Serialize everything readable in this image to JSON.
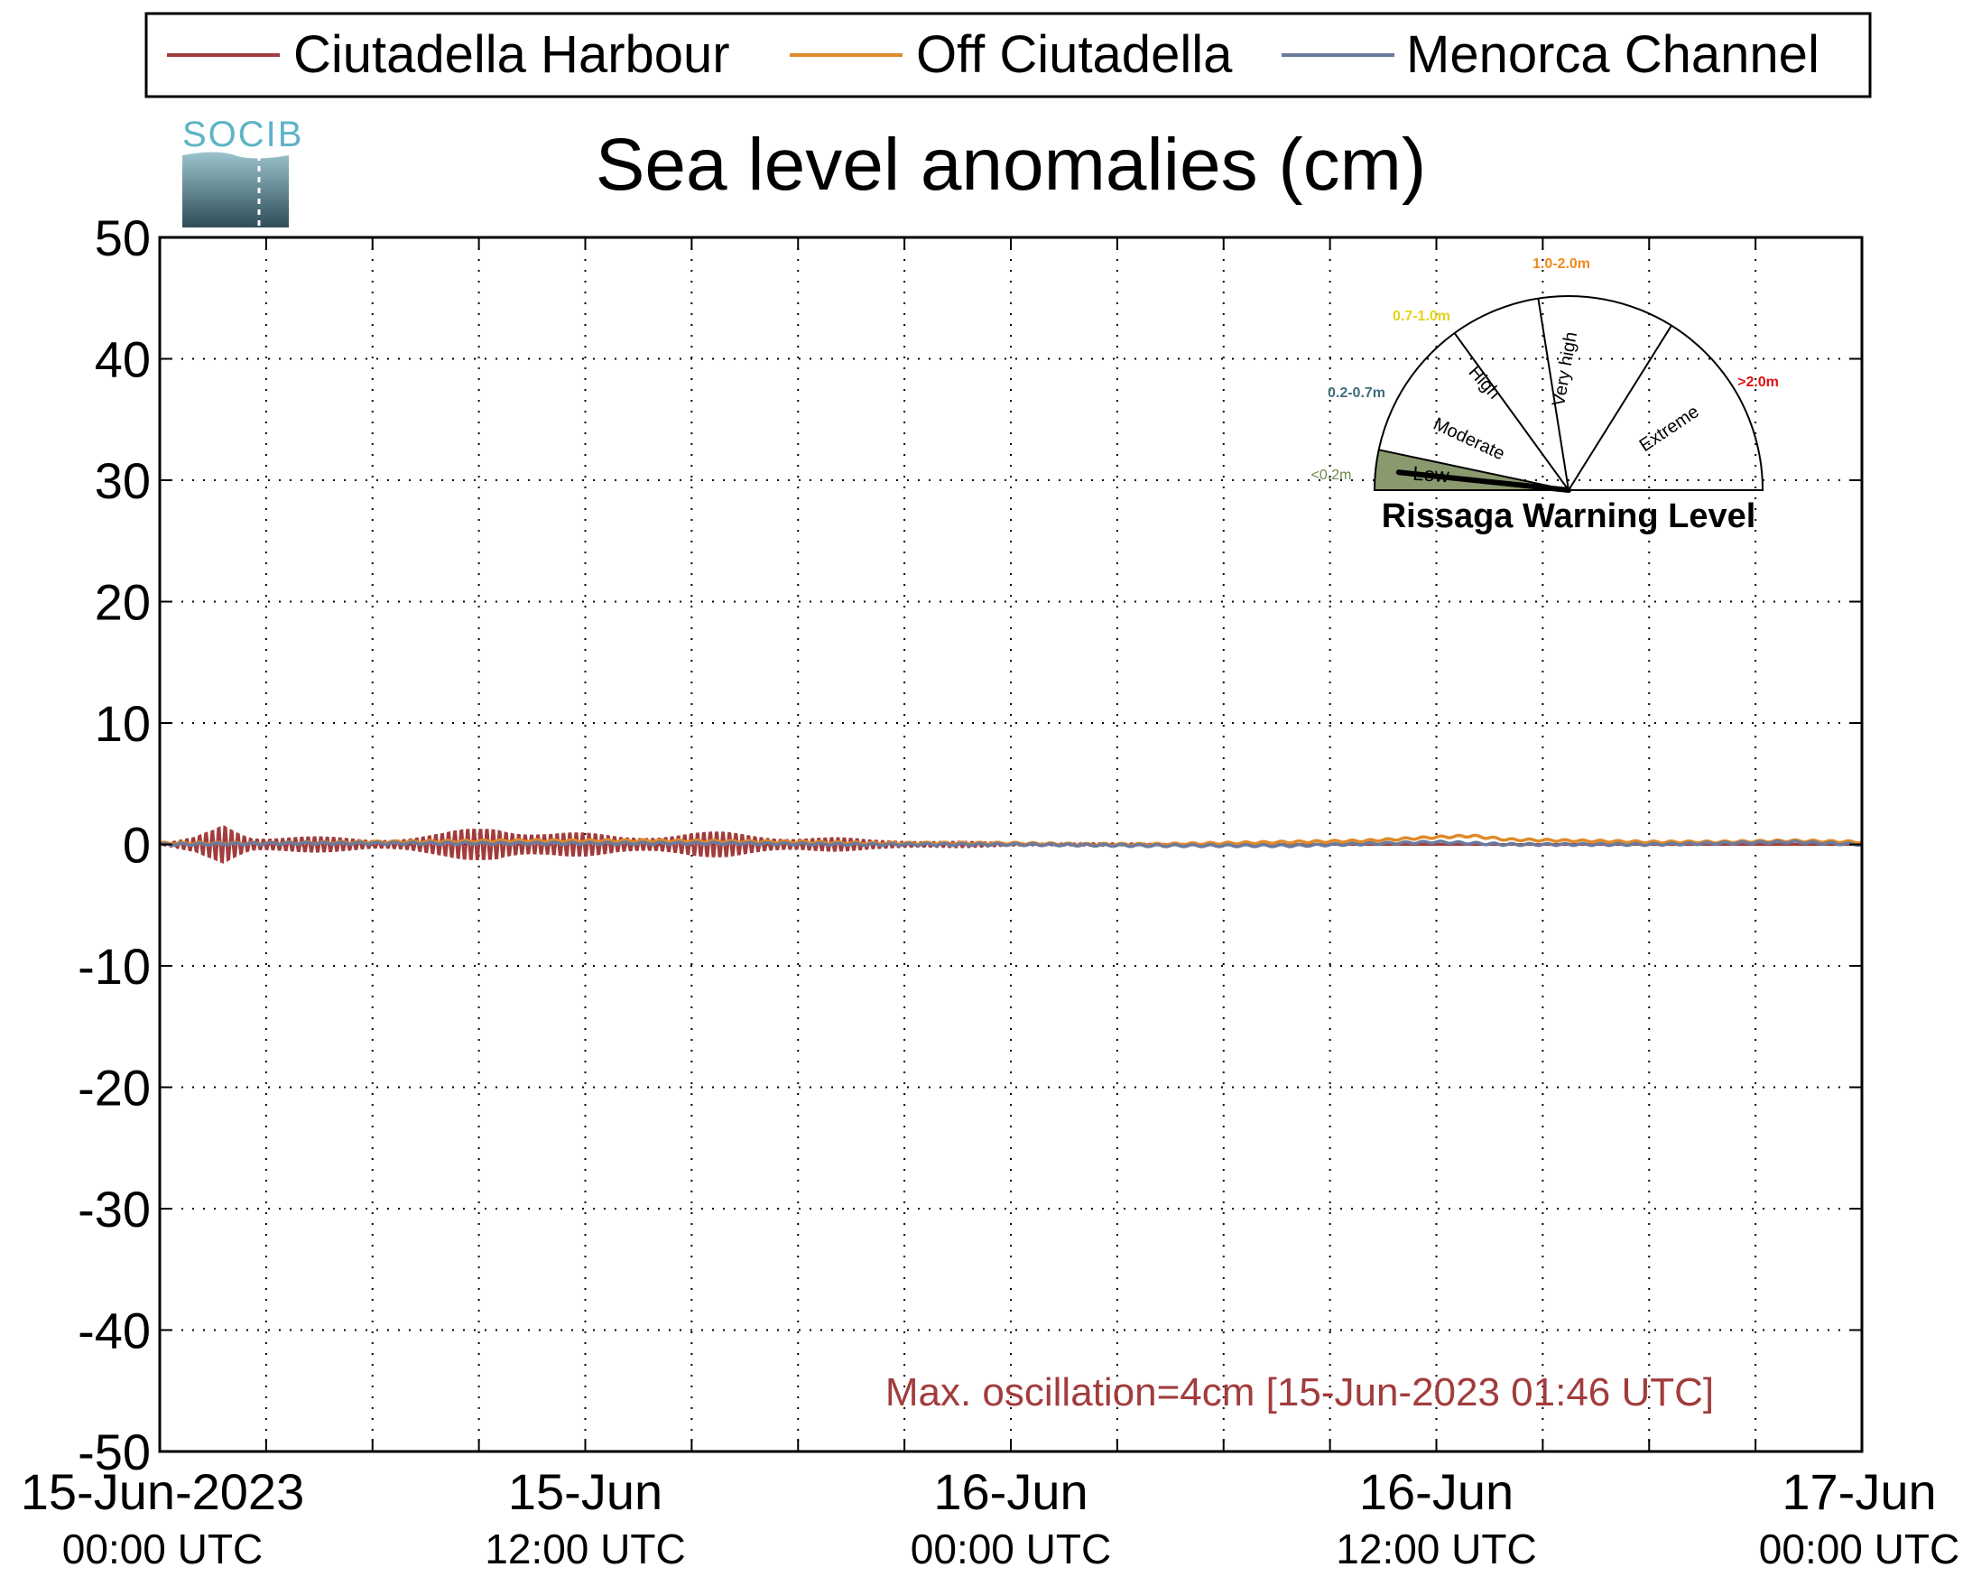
{
  "chart_data": {
    "type": "line",
    "title": "Sea level anomalies (cm)",
    "xlabel": "",
    "ylabel": "",
    "ylim": [
      -50,
      50
    ],
    "yticks": [
      50,
      40,
      30,
      20,
      10,
      0,
      -10,
      -20,
      -30,
      -40,
      -50
    ],
    "xlim_hours": [
      0,
      48
    ],
    "xtick_labels": [
      {
        "line1": "15-Jun-2023",
        "line2": "00:00 UTC"
      },
      {
        "line1": "15-Jun",
        "line2": "12:00 UTC"
      },
      {
        "line1": "16-Jun",
        "line2": "00:00 UTC"
      },
      {
        "line1": "16-Jun",
        "line2": "12:00 UTC"
      },
      {
        "line1": "17-Jun",
        "line2": "00:00 UTC"
      }
    ],
    "grid": true,
    "legend_position": "top",
    "series": [
      {
        "name": "Ciutadella Harbour",
        "color": "#a23c3c",
        "values": [
          [
            0,
            0.0
          ],
          [
            1,
            0.6
          ],
          [
            1.5,
            1.4
          ],
          [
            1.8,
            2.2
          ],
          [
            2.2,
            1.6
          ],
          [
            2.6,
            0.9
          ],
          [
            3,
            0.8
          ],
          [
            4,
            0.7
          ],
          [
            5,
            0.6
          ],
          [
            6,
            0.5
          ],
          [
            7,
            0.7
          ],
          [
            8,
            1.0
          ],
          [
            9,
            1.6
          ],
          [
            9.5,
            2.0
          ],
          [
            10,
            1.8
          ],
          [
            11,
            1.2
          ],
          [
            12,
            1.0
          ],
          [
            13,
            0.8
          ],
          [
            14,
            1.0
          ],
          [
            15,
            1.1
          ],
          [
            16,
            1.1
          ],
          [
            17,
            0.9
          ],
          [
            18,
            0.7
          ],
          [
            19,
            0.6
          ],
          [
            20,
            0.4
          ],
          [
            21,
            0.4
          ],
          [
            22,
            0.3
          ],
          [
            23,
            0.2
          ],
          [
            24,
            0.1
          ],
          [
            26,
            0.1
          ],
          [
            30,
            0.0
          ],
          [
            36,
            0.0
          ],
          [
            42,
            0.0
          ],
          [
            48,
            0.0
          ]
        ]
      },
      {
        "name": "Off Ciutadella",
        "color": "#e08a2a",
        "values": [
          [
            0,
            0.1
          ],
          [
            3,
            0.1
          ],
          [
            6,
            0.2
          ],
          [
            10,
            0.3
          ],
          [
            14,
            0.3
          ],
          [
            18,
            0.2
          ],
          [
            20,
            0.1
          ],
          [
            24,
            0.1
          ],
          [
            26,
            0.0
          ],
          [
            28,
            0.0
          ],
          [
            30,
            0.1
          ],
          [
            32,
            0.2
          ],
          [
            34,
            0.3
          ],
          [
            36,
            0.6
          ],
          [
            37,
            0.7
          ],
          [
            38,
            0.4
          ],
          [
            40,
            0.3
          ],
          [
            42,
            0.2
          ],
          [
            44,
            0.2
          ],
          [
            46,
            0.3
          ],
          [
            48,
            0.2
          ]
        ]
      },
      {
        "name": "Menorca Channel",
        "color": "#6b7a9c",
        "values": [
          [
            0,
            0.0
          ],
          [
            4,
            0.1
          ],
          [
            8,
            0.1
          ],
          [
            12,
            0.1
          ],
          [
            16,
            0.1
          ],
          [
            20,
            0.0
          ],
          [
            24,
            0.0
          ],
          [
            28,
            -0.1
          ],
          [
            32,
            -0.1
          ],
          [
            36,
            0.2
          ],
          [
            38,
            0.0
          ],
          [
            42,
            0.0
          ],
          [
            44,
            0.1
          ],
          [
            46,
            0.2
          ],
          [
            48,
            0.0
          ]
        ]
      }
    ],
    "annotation": "Max. oscillation=4cm [15-Jun-2023 01:46 UTC]",
    "annotation_color": "#a23c3c",
    "logo_text": "SOCIB",
    "gauge": {
      "title": "Rissaga Warning Level",
      "sectors": [
        {
          "label": "Low",
          "range": "<0.2m",
          "range_color": "#6b8a4e",
          "fill": "#8a9a6e"
        },
        {
          "label": "Moderate",
          "range": "0.2-0.7m",
          "range_color": "#3e6f7a",
          "fill": "#ffffff"
        },
        {
          "label": "High",
          "range": "0.7-1.0m",
          "range_color": "#e6d31a",
          "fill": "#ffffff"
        },
        {
          "label": "Very high",
          "range": "1.0-2.0m",
          "range_color": "#f08c1c",
          "fill": "#ffffff"
        },
        {
          "label": "Extreme",
          "range": ">2.0m",
          "range_color": "#e01010",
          "fill": "#ffffff"
        }
      ],
      "active_level": "Low"
    }
  }
}
